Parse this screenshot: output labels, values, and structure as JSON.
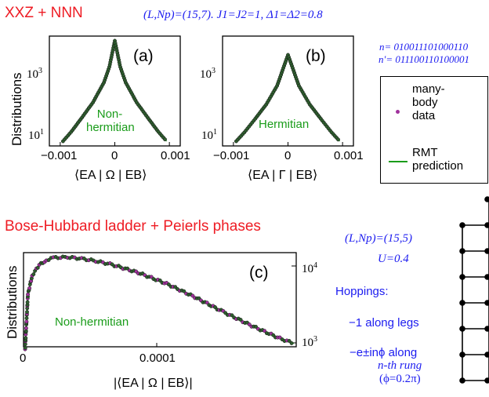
{
  "header": {
    "title": "XXZ + NNN",
    "params": "(L,Np)=(15,7).  J1=J2=1, Δ1=Δ2=0.8"
  },
  "states": {
    "n": "n= 010011101000110",
    "n_prime": "n′= 011100110100001"
  },
  "legend": {
    "data_label_lines": [
      "many-",
      "body",
      "data"
    ],
    "rmt_label_lines": [
      "RMT",
      "prediction"
    ],
    "data_color": "#a0329c",
    "rmt_color": "#1a9c1a"
  },
  "section2": {
    "title": "Bose-Hubbard ladder + Peierls phases",
    "params_L": "(L,Np)=(15,5)",
    "params_U": "U=0.4",
    "hoppings_title": "Hoppings:",
    "hop_legs": "−1 along legs",
    "hop_rung_1": "−e±inϕ along",
    "hop_rung_2": "n-th rung",
    "hop_rung_3": "(ϕ=0.2π)"
  },
  "chart_data": [
    {
      "type": "line",
      "panel": "(a)",
      "annotation": "Non-hermitian",
      "xlabel": "⟨EA | Ω | EB⟩",
      "ylabel": "Distributions",
      "x_ticks": [
        "−0.001",
        "0",
        "0.001"
      ],
      "y_ticks": [
        "10^1",
        "10^3"
      ],
      "y_scale": "log",
      "xlim": [
        -0.0012,
        0.0012
      ],
      "series": [
        {
          "x": [
            -0.00095,
            -0.0008,
            -0.0006,
            -0.0004,
            -0.0002,
            -0.0001,
            0,
            0.0001,
            0.0002,
            0.0004,
            0.0006,
            0.0008,
            0.00095
          ],
          "y": [
            8,
            15,
            40,
            110,
            420,
            1200,
            7000,
            1200,
            420,
            110,
            40,
            15,
            8
          ]
        }
      ]
    },
    {
      "type": "line",
      "panel": "(b)",
      "annotation": "Hermitian",
      "xlabel": "⟨EA | Γ | EB⟩",
      "x_ticks": [
        "−0.001",
        "0",
        "0.001"
      ],
      "y_ticks": [
        "10^1",
        "10^3"
      ],
      "y_scale": "log",
      "xlim": [
        -0.0012,
        0.0012
      ],
      "series": [
        {
          "x": [
            -0.00095,
            -0.0008,
            -0.0006,
            -0.0004,
            -0.0002,
            0,
            0.0002,
            0.0004,
            0.0006,
            0.0008,
            0.00095
          ],
          "y": [
            8,
            15,
            40,
            110,
            420,
            3800,
            420,
            110,
            40,
            15,
            8
          ]
        }
      ]
    },
    {
      "type": "line",
      "panel": "(c)",
      "annotation": "Non-hermitian",
      "xlabel": "|⟨EA | Ω | EB⟩|",
      "ylabel": "Distributions",
      "x_ticks": [
        "0",
        "0.0001"
      ],
      "y_ticks_right": [
        "10^4",
        "10^3"
      ],
      "series": [
        {
          "x": [
            0,
            2e-06,
            5e-06,
            1e-05,
            1.5e-05,
            2e-05,
            3e-05,
            4e-05,
            5e-05,
            6e-05,
            8e-05,
            0.0001,
            0.00012,
            0.00014,
            0.00016,
            0.00018,
            0.00019
          ],
          "y": [
            800,
            4000,
            7000,
            9500,
            11000,
            11800,
            12000,
            11500,
            10700,
            9800,
            7600,
            5500,
            3700,
            2400,
            1600,
            1100,
            950
          ]
        }
      ]
    }
  ]
}
